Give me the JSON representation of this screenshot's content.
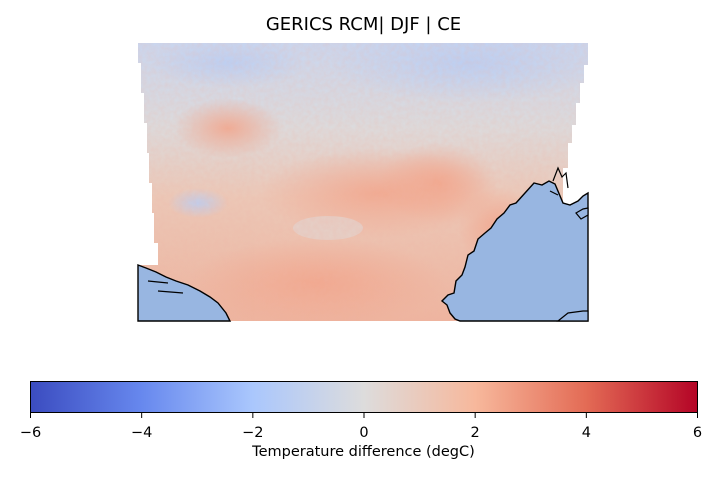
{
  "title": "GERICS RCM| DJF | CE",
  "map": {
    "variable": "Temperature difference",
    "season": "DJF",
    "model": "GERICS RCM",
    "colormap": "coolwarm",
    "ocean_color": "#98b6e1",
    "coastline_color": "#000000"
  },
  "colorbar": {
    "label": "Temperature difference (degC)",
    "range": [
      -6,
      6
    ],
    "ticks": [
      "−6",
      "−4",
      "−2",
      "0",
      "2",
      "4",
      "6"
    ],
    "tick_values": [
      -6,
      -4,
      -2,
      0,
      2,
      4,
      6
    ],
    "stops": [
      {
        "value": -6,
        "color": "#3b4cc0"
      },
      {
        "value": -4,
        "color": "#6788ee"
      },
      {
        "value": -2,
        "color": "#aac7fd"
      },
      {
        "value": 0,
        "color": "#dddcdc"
      },
      {
        "value": 2,
        "color": "#f7b89c"
      },
      {
        "value": 4,
        "color": "#e36b55"
      },
      {
        "value": 6,
        "color": "#b40426"
      }
    ]
  }
}
